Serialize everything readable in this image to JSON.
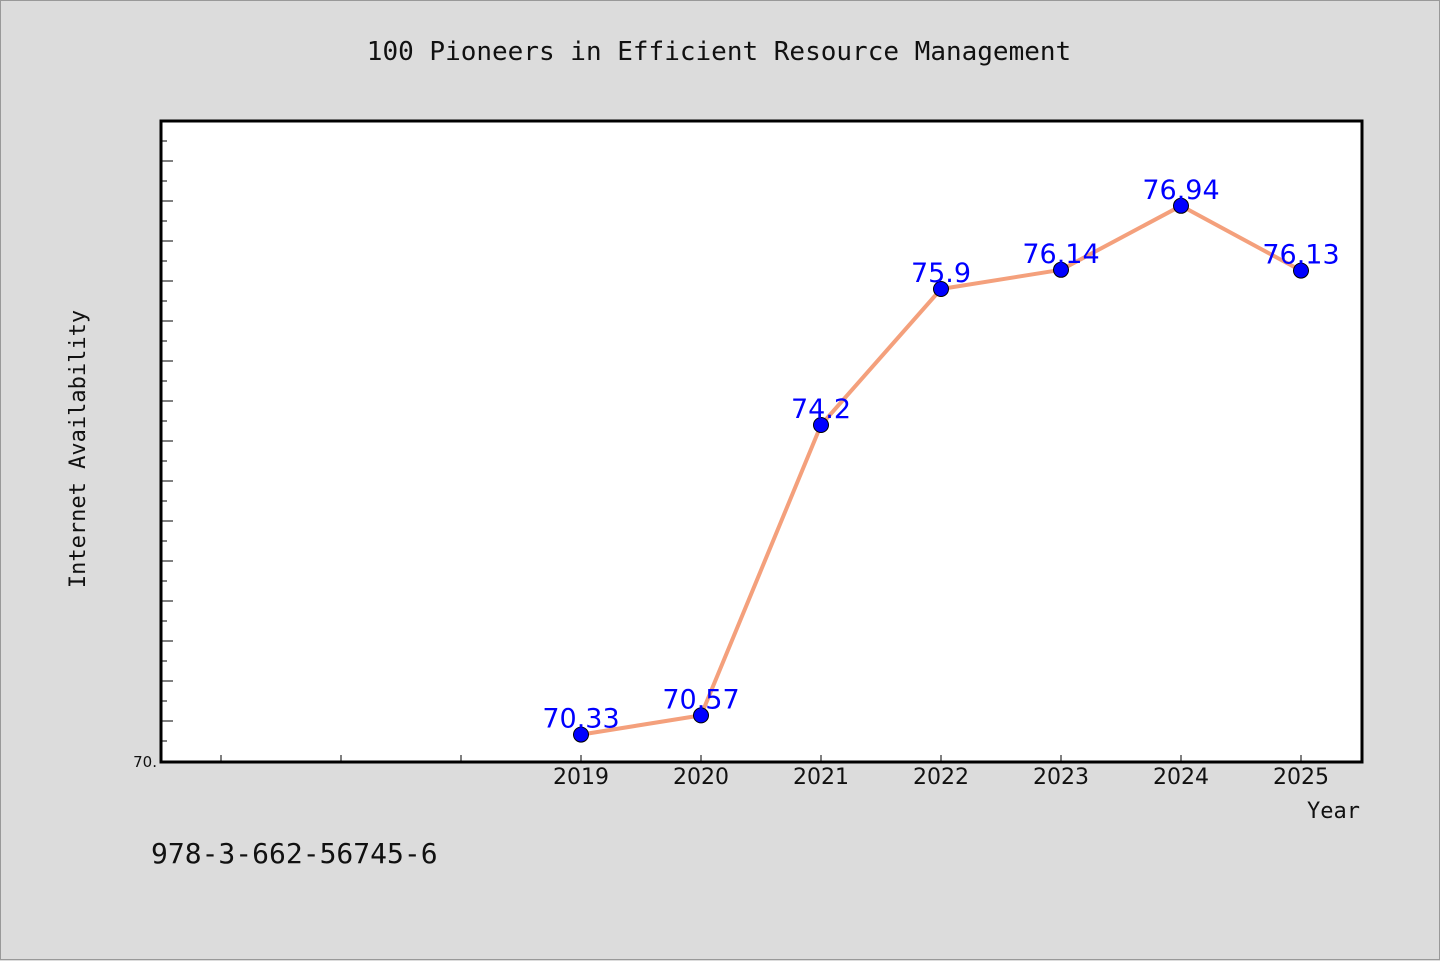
{
  "chart_data": {
    "type": "line",
    "title": "100 Pioneers in Efficient Resource Management",
    "xlabel": "Year",
    "ylabel": "Internet Availability",
    "x": [
      "2019",
      "2020",
      "2021",
      "2022",
      "2023",
      "2024",
      "2025"
    ],
    "values": [
      70.33,
      70.57,
      74.2,
      75.9,
      76.14,
      76.94,
      76.13
    ],
    "data_labels": [
      "70.33",
      "70.57",
      "74.2",
      "75.9",
      "76.14",
      "76.94",
      "76.13"
    ],
    "ylim": [
      70,
      78
    ],
    "ytick_labels": [
      "70."
    ],
    "grid": false,
    "line_color": "#f4a07c",
    "marker_color": "#0000ff",
    "label_color": "#0000ff"
  },
  "footer": {
    "isbn": "978-3-662-56745-6"
  }
}
